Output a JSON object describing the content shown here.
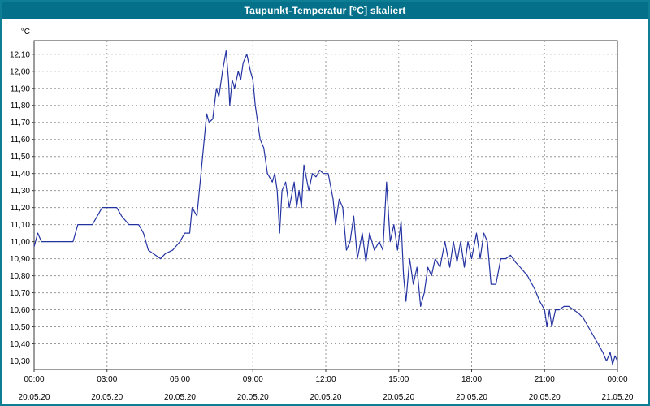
{
  "window": {
    "title": "Taupunkt-Temperatur [°C] skaliert"
  },
  "colors": {
    "titlebar_bg": "#04708a",
    "titlebar_text": "#ffffff",
    "frame_border": "#0e7e94",
    "plot_border": "#3a3a3a",
    "grid": "#9a9a9a",
    "line": "#2433a2",
    "tick_text": "#000000",
    "plot_bg": "#ffffff"
  },
  "chart_data": {
    "type": "line",
    "title": "Taupunkt-Temperatur [°C] skaliert",
    "xlabel": "",
    "ylabel": "°C",
    "grid": true,
    "legend": "none",
    "xlim": [
      0,
      24
    ],
    "ylim": [
      10.25,
      12.18
    ],
    "yticks": [
      {
        "value": 12.1,
        "label": "12,10"
      },
      {
        "value": 12.0,
        "label": "12,00"
      },
      {
        "value": 11.9,
        "label": "11,90"
      },
      {
        "value": 11.8,
        "label": "11,80"
      },
      {
        "value": 11.7,
        "label": "11,70"
      },
      {
        "value": 11.6,
        "label": "11,60"
      },
      {
        "value": 11.5,
        "label": "11,50"
      },
      {
        "value": 11.4,
        "label": "11,40"
      },
      {
        "value": 11.3,
        "label": "11,30"
      },
      {
        "value": 11.2,
        "label": "11,20"
      },
      {
        "value": 11.1,
        "label": "11,10"
      },
      {
        "value": 11.0,
        "label": "11,00"
      },
      {
        "value": 10.9,
        "label": "10,90"
      },
      {
        "value": 10.8,
        "label": "10,80"
      },
      {
        "value": 10.7,
        "label": "10,70"
      },
      {
        "value": 10.6,
        "label": "10,60"
      },
      {
        "value": 10.5,
        "label": "10,50"
      },
      {
        "value": 10.4,
        "label": "10,40"
      },
      {
        "value": 10.3,
        "label": "10,30"
      }
    ],
    "xticks": [
      {
        "hour": 0,
        "time": "00:00",
        "date": "20.05.20"
      },
      {
        "hour": 3,
        "time": "03:00",
        "date": "20.05.20"
      },
      {
        "hour": 6,
        "time": "06:00",
        "date": "20.05.20"
      },
      {
        "hour": 9,
        "time": "09:00",
        "date": "20.05.20"
      },
      {
        "hour": 12,
        "time": "12:00",
        "date": "20.05.20"
      },
      {
        "hour": 15,
        "time": "15:00",
        "date": "20.05.20"
      },
      {
        "hour": 18,
        "time": "18:00",
        "date": "20.05.20"
      },
      {
        "hour": 21,
        "time": "21:00",
        "date": "20.05.20"
      },
      {
        "hour": 24,
        "time": "00:00",
        "date": "21.05.20"
      }
    ],
    "series": [
      {
        "name": "Taupunkt-Temperatur [°C]",
        "x": [
          0,
          0.15,
          0.3,
          1.6,
          1.8,
          2.4,
          2.6,
          2.8,
          3.4,
          3.6,
          3.9,
          4.3,
          4.5,
          4.7,
          5.0,
          5.2,
          5.4,
          5.7,
          6.0,
          6.2,
          6.4,
          6.5,
          6.7,
          6.9,
          7.1,
          7.2,
          7.35,
          7.5,
          7.6,
          7.75,
          7.9,
          8.0,
          8.05,
          8.15,
          8.25,
          8.4,
          8.5,
          8.6,
          8.75,
          8.9,
          9.0,
          9.1,
          9.3,
          9.45,
          9.6,
          9.8,
          9.9,
          10.0,
          10.1,
          10.2,
          10.35,
          10.5,
          10.7,
          10.8,
          10.9,
          11.0,
          11.1,
          11.3,
          11.45,
          11.6,
          11.75,
          11.9,
          12.1,
          12.3,
          12.4,
          12.55,
          12.7,
          12.85,
          13.0,
          13.15,
          13.3,
          13.5,
          13.65,
          13.8,
          14.0,
          14.2,
          14.35,
          14.5,
          14.65,
          14.8,
          14.95,
          15.1,
          15.2,
          15.3,
          15.45,
          15.6,
          15.75,
          15.9,
          16.05,
          16.2,
          16.35,
          16.5,
          16.7,
          16.9,
          17.1,
          17.25,
          17.4,
          17.55,
          17.7,
          17.85,
          18.0,
          18.2,
          18.35,
          18.5,
          18.65,
          18.8,
          19.0,
          19.2,
          19.4,
          19.6,
          19.8,
          20.0,
          20.3,
          20.6,
          20.8,
          21.0,
          21.1,
          21.2,
          21.3,
          21.45,
          21.6,
          21.8,
          22.0,
          22.2,
          22.4,
          22.6,
          22.8,
          23.0,
          23.2,
          23.4,
          23.55,
          23.7,
          23.8,
          23.9,
          24.0
        ],
        "y": [
          10.97,
          11.05,
          11.0,
          11.0,
          11.1,
          11.1,
          11.15,
          11.2,
          11.2,
          11.15,
          11.1,
          11.1,
          11.05,
          10.95,
          10.92,
          10.9,
          10.93,
          10.95,
          11.0,
          11.05,
          11.05,
          11.2,
          11.15,
          11.45,
          11.75,
          11.7,
          11.72,
          11.9,
          11.85,
          12.0,
          12.12,
          11.95,
          11.8,
          11.95,
          11.9,
          12.0,
          11.95,
          12.05,
          12.1,
          12.0,
          11.95,
          11.8,
          11.6,
          11.55,
          11.4,
          11.35,
          11.4,
          11.3,
          11.05,
          11.3,
          11.35,
          11.2,
          11.35,
          11.2,
          11.3,
          11.2,
          11.45,
          11.3,
          11.4,
          11.38,
          11.42,
          11.4,
          11.4,
          11.25,
          11.1,
          11.25,
          11.2,
          10.95,
          11.0,
          11.15,
          10.9,
          11.05,
          10.88,
          11.05,
          10.95,
          11.0,
          10.95,
          11.35,
          11.0,
          11.1,
          10.95,
          11.12,
          10.8,
          10.65,
          10.9,
          10.75,
          10.85,
          10.62,
          10.7,
          10.85,
          10.8,
          10.9,
          10.85,
          11.0,
          10.85,
          11.0,
          10.88,
          11.0,
          10.85,
          11.0,
          10.9,
          11.05,
          10.9,
          11.05,
          11.0,
          10.75,
          10.75,
          10.9,
          10.9,
          10.92,
          10.88,
          10.85,
          10.8,
          10.72,
          10.65,
          10.6,
          10.5,
          10.6,
          10.5,
          10.6,
          10.6,
          10.62,
          10.62,
          10.6,
          10.58,
          10.55,
          10.5,
          10.45,
          10.4,
          10.35,
          10.3,
          10.35,
          10.28,
          10.33,
          10.3
        ]
      }
    ]
  }
}
